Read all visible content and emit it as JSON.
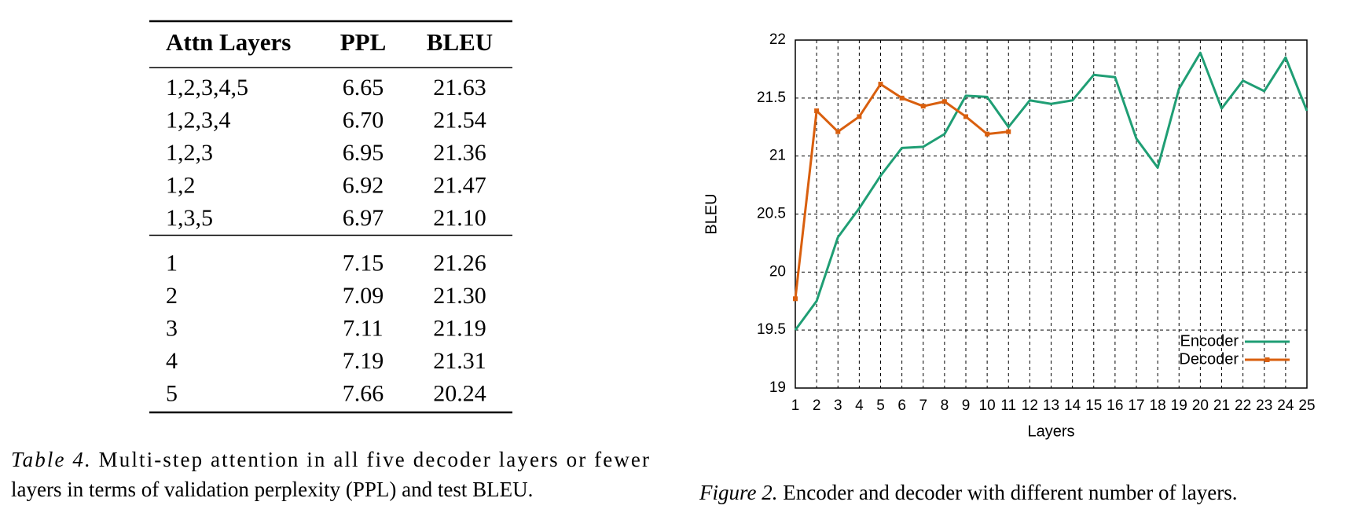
{
  "table": {
    "header": [
      "Attn Layers",
      "PPL",
      "BLEU"
    ],
    "groups": [
      [
        [
          "1,2,3,4,5",
          "6.65",
          "21.63"
        ],
        [
          "1,2,3,4",
          "6.70",
          "21.54"
        ],
        [
          "1,2,3",
          "6.95",
          "21.36"
        ],
        [
          "1,2",
          "6.92",
          "21.47"
        ],
        [
          "1,3,5",
          "6.97",
          "21.10"
        ]
      ],
      [
        [
          "1",
          "7.15",
          "21.26"
        ],
        [
          "2",
          "7.09",
          "21.30"
        ],
        [
          "3",
          "7.11",
          "21.19"
        ],
        [
          "4",
          "7.19",
          "21.31"
        ],
        [
          "5",
          "7.66",
          "20.24"
        ]
      ]
    ],
    "caption_label": "Table 4.",
    "caption_lines": [
      "Multi-step attention in all five decoder layers or fewer",
      "layers in terms of validation perplexity (PPL) and test BLEU."
    ]
  },
  "chart_data": {
    "type": "line",
    "x_label": "Layers",
    "y_label": "BLEU",
    "x": [
      1,
      2,
      3,
      4,
      5,
      6,
      7,
      8,
      9,
      10,
      11,
      12,
      13,
      14,
      15,
      16,
      17,
      18,
      19,
      20,
      21,
      22,
      23,
      24,
      25
    ],
    "xlim": [
      1,
      25
    ],
    "xticks": [
      1,
      2,
      3,
      4,
      5,
      6,
      7,
      8,
      9,
      10,
      11,
      12,
      13,
      14,
      15,
      16,
      17,
      18,
      19,
      20,
      21,
      22,
      23,
      24,
      25
    ],
    "ylim": [
      19,
      22
    ],
    "yticks": [
      19,
      19.5,
      20,
      20.5,
      21,
      21.5,
      22
    ],
    "grid": true,
    "legend": "lower right",
    "series": [
      {
        "name": "Encoder",
        "color": "#1f9e74",
        "marker": false,
        "values": [
          19.5,
          19.75,
          20.3,
          20.55,
          20.83,
          21.07,
          21.08,
          21.19,
          21.52,
          21.51,
          21.25,
          21.48,
          21.45,
          21.48,
          21.7,
          21.68,
          21.15,
          20.9,
          21.58,
          21.89,
          21.41,
          21.65,
          21.56,
          21.85,
          21.39
        ]
      },
      {
        "name": "Decoder",
        "color": "#d95f0e",
        "marker": true,
        "values": [
          19.77,
          21.39,
          21.21,
          21.34,
          21.62,
          21.5,
          21.43,
          21.47,
          21.34,
          21.19,
          21.21,
          null,
          null,
          null,
          null,
          null,
          null,
          null,
          null,
          null,
          null,
          null,
          null,
          null,
          null
        ]
      }
    ]
  },
  "figure_caption": {
    "label": "Figure 2.",
    "text": "Encoder and decoder with different number of layers."
  }
}
